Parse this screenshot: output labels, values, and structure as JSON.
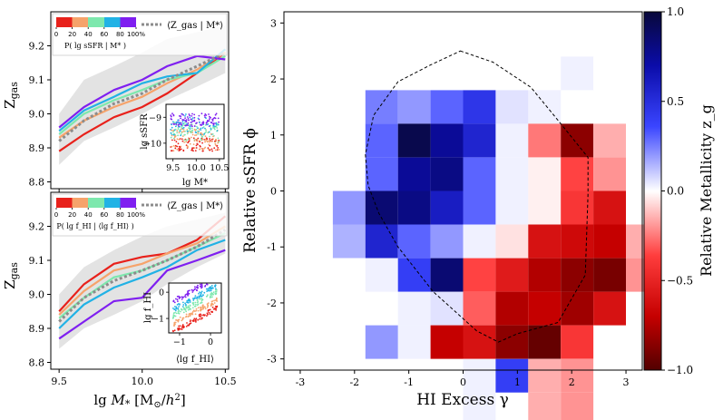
{
  "chart_data": [
    {
      "type": "line",
      "panel": "top-left",
      "ylabel": "Z_gas",
      "xlim": [
        9.45,
        10.52
      ],
      "ylim": [
        8.78,
        9.3
      ],
      "yticks": [
        8.8,
        8.9,
        9.0,
        9.1,
        9.2
      ],
      "ytick_labels": [
        "8.8",
        "8.9",
        "9.0",
        "9.1",
        "9.2"
      ],
      "xticks": [
        9.5,
        10.0,
        10.5
      ],
      "legend": {
        "colorbar_ticks": [
          "0",
          "20",
          "40",
          "60",
          "80",
          "100%"
        ],
        "colorbar_label": "P( lg sSFR | M* )",
        "mean_label": "⟨Z_gas | M*⟩",
        "colors": [
          "#e8211b",
          "#f6a36b",
          "#7de8ad",
          "#21b2e5",
          "#7f1ff0"
        ]
      },
      "band": {
        "x": [
          9.5,
          9.65,
          9.83,
          10.0,
          10.15,
          10.33,
          10.5
        ],
        "lower": [
          8.85,
          8.92,
          8.96,
          9.0,
          9.04,
          9.08,
          9.12
        ],
        "upper": [
          9.0,
          9.1,
          9.14,
          9.18,
          9.22,
          9.24,
          9.26
        ]
      },
      "series": [
        {
          "name": "0-20%",
          "color": "#e8211b",
          "x": [
            9.5,
            9.65,
            9.83,
            10.0,
            10.15,
            10.33,
            10.5
          ],
          "values": [
            8.89,
            8.94,
            8.99,
            9.02,
            9.06,
            9.12,
            9.18
          ]
        },
        {
          "name": "20-40%",
          "color": "#f6a36b",
          "x": [
            9.5,
            9.65,
            9.83,
            10.0,
            10.15,
            10.33,
            10.5
          ],
          "values": [
            8.93,
            8.98,
            9.02,
            9.05,
            9.09,
            9.13,
            9.18
          ]
        },
        {
          "name": "40-60%",
          "color": "#7de8ad",
          "x": [
            9.5,
            9.65,
            9.83,
            10.0,
            10.15,
            10.33,
            10.5
          ],
          "values": [
            8.94,
            9.0,
            9.04,
            9.07,
            9.1,
            9.12,
            9.17
          ]
        },
        {
          "name": "60-80%",
          "color": "#21b2e5",
          "x": [
            9.5,
            9.65,
            9.83,
            10.0,
            10.15,
            10.33,
            10.5
          ],
          "values": [
            8.95,
            9.01,
            9.05,
            9.09,
            9.11,
            9.12,
            9.19
          ]
        },
        {
          "name": "80-100%",
          "color": "#7f1ff0",
          "x": [
            9.5,
            9.65,
            9.83,
            10.0,
            10.15,
            10.33,
            10.5
          ],
          "values": [
            8.96,
            9.02,
            9.07,
            9.1,
            9.14,
            9.17,
            9.16
          ]
        }
      ],
      "mean": {
        "x": [
          9.5,
          9.65,
          9.83,
          10.0,
          10.15,
          10.33,
          10.5
        ],
        "values": [
          8.92,
          8.98,
          9.03,
          9.06,
          9.1,
          9.14,
          9.18
        ]
      },
      "inset": {
        "xlabel": "lg M*",
        "ylabel": "lg sSFR",
        "xlim": [
          9.35,
          10.6
        ],
        "ylim": [
          -10.6,
          -8.5
        ],
        "xticks": [
          9.5,
          10.0,
          10.5
        ],
        "xtick_labels": [
          "9.5",
          "10.0",
          "10.5"
        ],
        "yticks": [
          -9,
          -10
        ],
        "ytick_labels": [
          "−9",
          "−10"
        ],
        "scatter_y_mid": [
          -9.1,
          -9.45,
          -9.7,
          -10.05
        ],
        "scatter_y_spread": 0.85
      }
    },
    {
      "type": "line",
      "panel": "bottom-left",
      "ylabel": "Z_gas",
      "xlabel": "lg M* [M⊙/h²]",
      "xlim": [
        9.45,
        10.52
      ],
      "ylim": [
        8.78,
        9.3
      ],
      "yticks": [
        8.8,
        8.9,
        9.0,
        9.1,
        9.2
      ],
      "ytick_labels": [
        "8.8",
        "8.9",
        "9.0",
        "9.1",
        "9.2"
      ],
      "xticks": [
        9.5,
        10.0,
        10.5
      ],
      "xtick_labels": [
        "9.5",
        "10.0",
        "10.5"
      ],
      "legend": {
        "colorbar_ticks": [
          "0",
          "20",
          "40",
          "60",
          "80",
          "100%"
        ],
        "colorbar_label": "P( lg f_HI | ⟨lg f_HI⟩ )",
        "mean_label": "⟨Z_gas | M*⟩",
        "colors": [
          "#e8211b",
          "#f6a36b",
          "#7de8ad",
          "#21b2e5",
          "#7f1ff0"
        ]
      },
      "band": {
        "x": [
          9.5,
          9.65,
          9.83,
          10.0,
          10.15,
          10.33,
          10.5
        ],
        "lower": [
          8.84,
          8.9,
          8.94,
          8.98,
          9.03,
          9.08,
          9.12
        ],
        "upper": [
          9.0,
          9.08,
          9.13,
          9.17,
          9.2,
          9.22,
          9.24
        ]
      },
      "series": [
        {
          "name": "0-20%",
          "color": "#e8211b",
          "x": [
            9.5,
            9.65,
            9.83,
            10.0,
            10.15,
            10.33,
            10.5
          ],
          "values": [
            8.95,
            9.03,
            9.09,
            9.11,
            9.12,
            9.16,
            9.23
          ]
        },
        {
          "name": "20-40%",
          "color": "#f6a36b",
          "x": [
            9.5,
            9.65,
            9.83,
            10.0,
            10.15,
            10.33,
            10.5
          ],
          "values": [
            8.94,
            9.01,
            9.07,
            9.09,
            9.12,
            9.15,
            9.2
          ]
        },
        {
          "name": "40-60%",
          "color": "#7de8ad",
          "x": [
            9.5,
            9.65,
            9.83,
            10.0,
            10.15,
            10.33,
            10.5
          ],
          "values": [
            8.93,
            8.99,
            9.05,
            9.07,
            9.1,
            9.14,
            9.18
          ]
        },
        {
          "name": "60-80%",
          "color": "#21b2e5",
          "x": [
            9.5,
            9.65,
            9.83,
            10.0,
            10.15,
            10.33,
            10.5
          ],
          "values": [
            8.9,
            8.97,
            9.02,
            9.05,
            9.08,
            9.13,
            9.16
          ]
        },
        {
          "name": "80-100%",
          "color": "#7f1ff0",
          "x": [
            9.5,
            9.65,
            9.83,
            10.0,
            10.15,
            10.33,
            10.5
          ],
          "values": [
            8.87,
            8.92,
            8.98,
            8.99,
            9.07,
            9.1,
            9.13
          ]
        }
      ],
      "mean": {
        "x": [
          9.5,
          9.65,
          9.83,
          10.0,
          10.15,
          10.33,
          10.5
        ],
        "values": [
          8.92,
          8.99,
          9.04,
          9.07,
          9.1,
          9.14,
          9.19
        ]
      },
      "inset": {
        "xlabel": "⟨lg f_HI⟩",
        "ylabel": "lg f_HI",
        "xlim": [
          -1.35,
          0.35
        ],
        "ylim": [
          -1.55,
          0.35
        ],
        "xticks": [
          -1,
          0
        ],
        "xtick_labels": [
          "−1",
          "0"
        ],
        "yticks": [
          0,
          -1
        ],
        "ytick_labels": [
          "0",
          "−1"
        ],
        "scatter_y_mid": [
          0.1,
          -0.2,
          -0.45,
          -0.75,
          -1.05
        ],
        "scatter_y_spread": 0.35
      }
    },
    {
      "type": "heatmap",
      "panel": "right",
      "xlabel": "HI Excess  γ",
      "ylabel": "Relative sSFR  ϕ",
      "xlim": [
        -3.3,
        3.3
      ],
      "ylim": [
        -3.2,
        3.2
      ],
      "xticks": [
        -3,
        -2,
        -1,
        0,
        1,
        2,
        3
      ],
      "xtick_labels": [
        "-3",
        "-2",
        "-1",
        "0",
        "1",
        "2",
        "3"
      ],
      "yticks": [
        3,
        2,
        1,
        0,
        -1,
        -2,
        -3
      ],
      "ytick_labels": [
        "3",
        "2",
        "1",
        "0",
        "-1",
        "-2",
        "-3"
      ],
      "bin_size": 0.6,
      "x_edges_start": -2.4,
      "y_edges_start": -3.0,
      "cells": [
        {
          "ix": 7,
          "iy": 8,
          "value": 0.05
        },
        {
          "ix": 1,
          "iy": 7,
          "value": 0.25
        },
        {
          "ix": 2,
          "iy": 7,
          "value": 0.2
        },
        {
          "ix": 3,
          "iy": 7,
          "value": 0.3
        },
        {
          "ix": 4,
          "iy": 7,
          "value": 0.45
        },
        {
          "ix": 5,
          "iy": 7,
          "value": 0.1
        },
        {
          "ix": 6,
          "iy": 7,
          "value": 0.05
        },
        {
          "ix": 1,
          "iy": 6,
          "value": 0.3
        },
        {
          "ix": 2,
          "iy": 6,
          "value": 0.95
        },
        {
          "ix": 3,
          "iy": 6,
          "value": 0.75
        },
        {
          "ix": 4,
          "iy": 6,
          "value": 0.55
        },
        {
          "ix": 5,
          "iy": 6,
          "value": 0.05
        },
        {
          "ix": 6,
          "iy": 6,
          "value": -0.25
        },
        {
          "ix": 7,
          "iy": 6,
          "value": -0.85
        },
        {
          "ix": 8,
          "iy": 6,
          "value": -0.15
        },
        {
          "ix": 1,
          "iy": 5,
          "value": 0.3
        },
        {
          "ix": 2,
          "iy": 5,
          "value": 0.75
        },
        {
          "ix": 3,
          "iy": 5,
          "value": 0.8
        },
        {
          "ix": 4,
          "iy": 5,
          "value": 0.3
        },
        {
          "ix": 5,
          "iy": 5,
          "value": 0.05
        },
        {
          "ix": 6,
          "iy": 5,
          "value": -0.05
        },
        {
          "ix": 7,
          "iy": 5,
          "value": -0.35
        },
        {
          "ix": 8,
          "iy": 5,
          "value": -0.2
        },
        {
          "ix": 0,
          "iy": 4,
          "value": 0.2
        },
        {
          "ix": 1,
          "iy": 4,
          "value": 0.85
        },
        {
          "ix": 2,
          "iy": 4,
          "value": 0.8
        },
        {
          "ix": 3,
          "iy": 4,
          "value": 0.6
        },
        {
          "ix": 4,
          "iy": 4,
          "value": 0.3
        },
        {
          "ix": 5,
          "iy": 4,
          "value": 0.05
        },
        {
          "ix": 6,
          "iy": 4,
          "value": -0.05
        },
        {
          "ix": 7,
          "iy": 4,
          "value": -0.4
        },
        {
          "ix": 8,
          "iy": 4,
          "value": -0.6
        },
        {
          "ix": 0,
          "iy": 3,
          "value": 0.15
        },
        {
          "ix": 1,
          "iy": 3,
          "value": 0.55
        },
        {
          "ix": 2,
          "iy": 3,
          "value": 0.3
        },
        {
          "ix": 3,
          "iy": 3,
          "value": 0.2
        },
        {
          "ix": 4,
          "iy": 3,
          "value": 0.05
        },
        {
          "ix": 5,
          "iy": 3,
          "value": -0.1
        },
        {
          "ix": 6,
          "iy": 3,
          "value": -0.6
        },
        {
          "ix": 7,
          "iy": 3,
          "value": -0.65
        },
        {
          "ix": 8,
          "iy": 3,
          "value": -0.7
        },
        {
          "ix": 9,
          "iy": 3,
          "value": -0.15
        },
        {
          "ix": 1,
          "iy": 2,
          "value": 0.05
        },
        {
          "ix": 2,
          "iy": 2,
          "value": 0.4
        },
        {
          "ix": 3,
          "iy": 2,
          "value": 0.85
        },
        {
          "ix": 4,
          "iy": 2,
          "value": -0.35
        },
        {
          "ix": 5,
          "iy": 2,
          "value": -0.55
        },
        {
          "ix": 6,
          "iy": 2,
          "value": -0.75
        },
        {
          "ix": 7,
          "iy": 2,
          "value": -0.85
        },
        {
          "ix": 8,
          "iy": 2,
          "value": -0.9
        },
        {
          "ix": 9,
          "iy": 2,
          "value": -0.2
        },
        {
          "ix": 2,
          "iy": 1,
          "value": 0.05
        },
        {
          "ix": 3,
          "iy": 1,
          "value": 0.1
        },
        {
          "ix": 4,
          "iy": 1,
          "value": -0.3
        },
        {
          "ix": 5,
          "iy": 1,
          "value": -0.75
        },
        {
          "ix": 6,
          "iy": 1,
          "value": -0.7
        },
        {
          "ix": 7,
          "iy": 1,
          "value": -0.8
        },
        {
          "ix": 8,
          "iy": 1,
          "value": -0.6
        },
        {
          "ix": 1,
          "iy": 0,
          "value": 0.2
        },
        {
          "ix": 2,
          "iy": 0,
          "value": 0.05
        },
        {
          "ix": 3,
          "iy": 0,
          "value": -0.7
        },
        {
          "ix": 4,
          "iy": 0,
          "value": -0.6
        },
        {
          "ix": 5,
          "iy": 0,
          "value": -0.85
        },
        {
          "ix": 6,
          "iy": 0,
          "value": -0.95
        },
        {
          "ix": 7,
          "iy": 0,
          "value": -0.4
        },
        {
          "ix": 4,
          "iy": -1,
          "value": 0.05
        },
        {
          "ix": 5,
          "iy": -1,
          "value": 0.4
        },
        {
          "ix": 6,
          "iy": -1,
          "value": -0.15
        },
        {
          "ix": 7,
          "iy": -1,
          "value": -0.2
        },
        {
          "ix": 4,
          "iy": -2,
          "value": 0.05
        },
        {
          "ix": 6,
          "iy": -2,
          "value": -0.15
        },
        {
          "ix": 7,
          "iy": -2,
          "value": -0.2
        }
      ],
      "contour": {
        "style": "dashed",
        "x": [
          -0.05,
          0.55,
          1.25,
          1.8,
          2.3,
          2.3,
          2.25,
          1.75,
          1.0,
          0.65,
          0.25,
          -0.55,
          -1.2,
          -1.55,
          -1.75,
          -1.8,
          -1.65,
          -1.2,
          -0.6,
          -0.05
        ],
        "y": [
          2.5,
          2.3,
          1.85,
          1.2,
          0.6,
          -0.05,
          -1.5,
          -2.35,
          -2.55,
          -2.7,
          -2.5,
          -1.8,
          -1.0,
          -0.4,
          0.1,
          0.65,
          1.35,
          1.95,
          2.25,
          2.5
        ]
      },
      "colorbar": {
        "label": "Relative Metallicity  z_g",
        "vmin": -1.0,
        "vmax": 1.0,
        "ticks": [
          1.0,
          0.5,
          0.0,
          -0.5,
          -1.0
        ],
        "tick_labels": [
          "1.0",
          "0.5",
          "0.0",
          "−0.5",
          "−1.0"
        ]
      }
    }
  ]
}
